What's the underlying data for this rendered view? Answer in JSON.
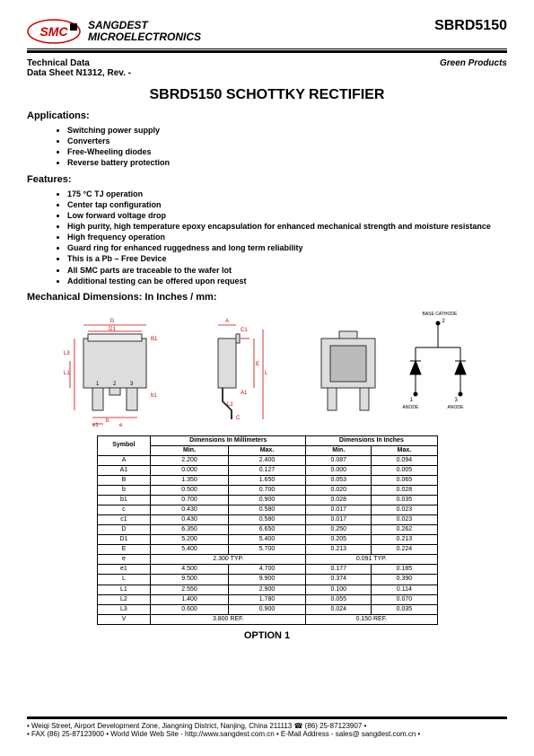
{
  "header": {
    "logo_text": "SMC",
    "company_line1": "SANGDEST",
    "company_line2": "MICROELECTRONICS",
    "part_number": "SBRD5150"
  },
  "subheader": {
    "tech_data": "Technical Data",
    "datasheet": "Data Sheet N1312, Rev. -",
    "green": "Green Products"
  },
  "title": "SBRD5150 SCHOTTKY RECTIFIER",
  "sections": {
    "applications_label": "Applications:",
    "applications": [
      "Switching power supply",
      "Converters",
      "Free-Wheeling diodes",
      "Reverse battery protection"
    ],
    "features_label": "Features:",
    "features": [
      "175 °C TJ operation",
      "Center tap configuration",
      "Low forward voltage drop",
      "High purity, high temperature epoxy encapsulation for enhanced mechanical strength and moisture resistance",
      "High frequency operation",
      "Guard ring for enhanced ruggedness and long term reliability",
      "This is a Pb – Free Device",
      "All SMC parts are traceable to the wafer lot",
      "Additional testing can be offered upon request"
    ],
    "mech_label": "Mechanical Dimensions: In Inches / mm:"
  },
  "diagram": {
    "front_labels": [
      "D",
      "D1",
      "B1",
      "L3",
      "L1",
      "b1",
      "b",
      "e",
      "e1",
      "1",
      "2",
      "3"
    ],
    "side_labels": [
      "A",
      "C1",
      "A1",
      "L2",
      "C",
      "E",
      "L"
    ],
    "schematic": {
      "title": "BASE CATHODE",
      "pin2": "2",
      "pin1": "1",
      "pin3": "3",
      "anode1": "ANODE",
      "anode2": "ANODE"
    },
    "line_color": "#cc0000",
    "package_fill": "#dddddd",
    "package_stroke": "#333333"
  },
  "table": {
    "header_symbol": "Symbol",
    "header_mm": "Dimensions In Millimeters",
    "header_in": "Dimensions In Inches",
    "header_min": "Min.",
    "header_max": "Max.",
    "rows": [
      {
        "sym": "A",
        "mm_min": "2.200",
        "mm_max": "2.400",
        "in_min": "0.087",
        "in_max": "0.094"
      },
      {
        "sym": "A1",
        "mm_min": "0.000",
        "mm_max": "0.127",
        "in_min": "0.000",
        "in_max": "0.005"
      },
      {
        "sym": "B",
        "mm_min": "1.350",
        "mm_max": "1.650",
        "in_min": "0.053",
        "in_max": "0.065"
      },
      {
        "sym": "b",
        "mm_min": "0.500",
        "mm_max": "0.700",
        "in_min": "0.020",
        "in_max": "0.028"
      },
      {
        "sym": "b1",
        "mm_min": "0.700",
        "mm_max": "0.900",
        "in_min": "0.028",
        "in_max": "0.035"
      },
      {
        "sym": "c",
        "mm_min": "0.430",
        "mm_max": "0.580",
        "in_min": "0.017",
        "in_max": "0.023"
      },
      {
        "sym": "c1",
        "mm_min": "0.430",
        "mm_max": "0.580",
        "in_min": "0.017",
        "in_max": "0.023"
      },
      {
        "sym": "D",
        "mm_min": "6.350",
        "mm_max": "6.650",
        "in_min": "0.250",
        "in_max": "0.262"
      },
      {
        "sym": "D1",
        "mm_min": "5.200",
        "mm_max": "5.400",
        "in_min": "0.205",
        "in_max": "0.213"
      },
      {
        "sym": "E",
        "mm_min": "5.400",
        "mm_max": "5.700",
        "in_min": "0.213",
        "in_max": "0.224"
      }
    ],
    "row_e": {
      "sym": "e",
      "mm": "2.300 TYP.",
      "in": "0.091 TYP."
    },
    "rows2": [
      {
        "sym": "e1",
        "mm_min": "4.500",
        "mm_max": "4.700",
        "in_min": "0.177",
        "in_max": "0.185"
      },
      {
        "sym": "L",
        "mm_min": "9.500",
        "mm_max": "9.900",
        "in_min": "0.374",
        "in_max": "0.390"
      },
      {
        "sym": "L1",
        "mm_min": "2.550",
        "mm_max": "2.900",
        "in_min": "0.100",
        "in_max": "0.114"
      },
      {
        "sym": "L2",
        "mm_min": "1.400",
        "mm_max": "1.780",
        "in_min": "0.055",
        "in_max": "0.070"
      },
      {
        "sym": "L3",
        "mm_min": "0.600",
        "mm_max": "0.900",
        "in_min": "0.024",
        "in_max": "0.035"
      }
    ],
    "row_v": {
      "sym": "V",
      "mm": "3.800 REF.",
      "in": "0.150 REF."
    }
  },
  "option_label": "OPTION 1",
  "footer": {
    "line1": "• Weiqi Street, Airport Development Zone, Jiangning District, Nanjing, China 211113  ☎ (86) 25-87123907 •",
    "line2": "• FAX (86) 25-87123900 • World Wide Web Site - http://www.sangdest.com.cn • E-Mail Address - sales@ sangdest.com.cn •"
  }
}
